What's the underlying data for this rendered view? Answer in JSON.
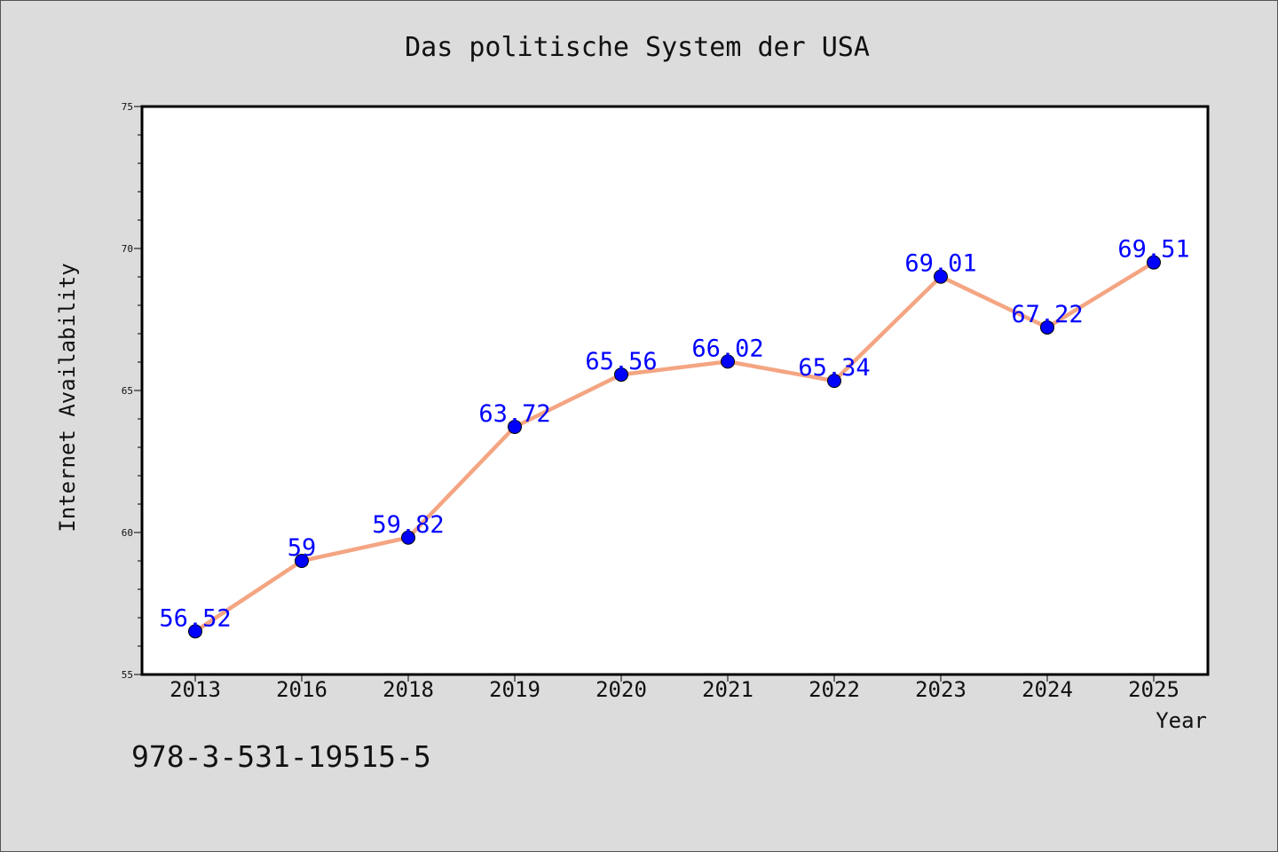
{
  "chart_data": {
    "type": "line",
    "title": "Das politische System der USA",
    "xlabel": "Year",
    "ylabel": "Internet Availability",
    "categories": [
      "2013",
      "2016",
      "2018",
      "2019",
      "2020",
      "2021",
      "2022",
      "2023",
      "2024",
      "2025"
    ],
    "values": [
      56.52,
      59,
      59.82,
      63.72,
      65.56,
      66.02,
      65.34,
      69.01,
      67.22,
      69.51
    ],
    "data_labels": [
      "56.52",
      "59",
      "59.82",
      "63.72",
      "65.56",
      "66.02",
      "65.34",
      "69.01",
      "67.22",
      "69.51"
    ],
    "ylim": [
      55,
      75
    ],
    "yticks": [
      55,
      60,
      65,
      70,
      75
    ],
    "grid": false,
    "line_color": "#f4a582",
    "marker_color": "#0000ff",
    "label_color": "#0000ff",
    "background_color": "#dcdcdc",
    "plot_background_color": "#ffffff"
  },
  "footer": {
    "isbn": "978-3-531-19515-5"
  }
}
